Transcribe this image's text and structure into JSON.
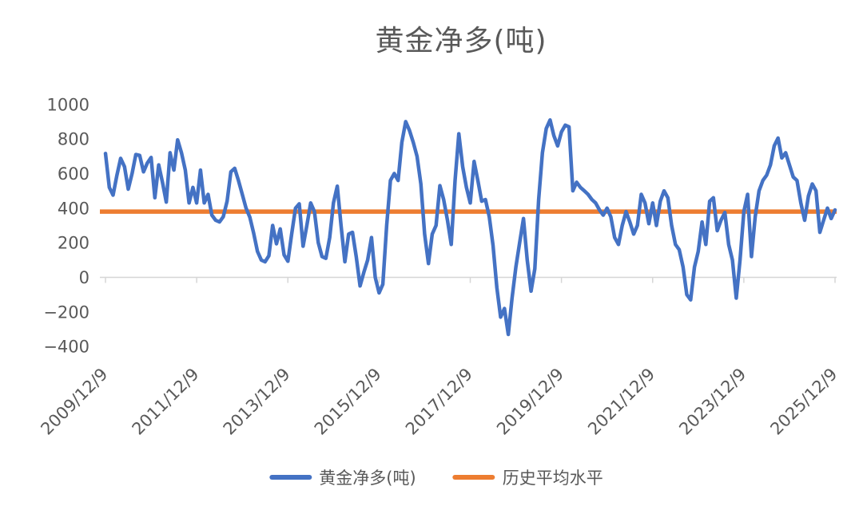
{
  "title": "黄金净多(吨)",
  "colors": {
    "series_blue": "#4472C4",
    "average_orange": "#ED7D31",
    "axis_line": "#D6D6D6",
    "text_gray": "#595959",
    "background": "#FFFFFF"
  },
  "legend": [
    {
      "label": "黄金净多(吨)",
      "color": "#4472C4"
    },
    {
      "label": "历史平均水平",
      "color": "#ED7D31"
    }
  ],
  "chart_data": {
    "type": "line",
    "title": "黄金净多(吨)",
    "xlabel": "",
    "ylabel": "",
    "ylim": [
      -400,
      1000
    ],
    "y_ticks": [
      1000,
      800,
      600,
      400,
      200,
      0,
      -200,
      -400
    ],
    "x_tick_labels": [
      "2009/12/9",
      "2011/12/9",
      "2013/12/9",
      "2015/12/9",
      "2017/12/9",
      "2019/12/9",
      "2021/12/9",
      "2023/12/9",
      "2025/12/9"
    ],
    "grid": "baseline-at-zero-only",
    "legend_position": "bottom",
    "series": [
      {
        "name": "黄金净多(吨)",
        "color": "#4472C4",
        "unit": "吨",
        "sampling": "monthly estimates read from plot, 2009/12 to 2025/12",
        "values": [
          716,
          520,
          475,
          590,
          688,
          640,
          510,
          600,
          710,
          705,
          610,
          660,
          693,
          460,
          650,
          550,
          435,
          720,
          620,
          795,
          720,
          620,
          430,
          520,
          430,
          620,
          430,
          480,
          360,
          330,
          320,
          350,
          440,
          610,
          630,
          560,
          480,
          400,
          347,
          254,
          150,
          100,
          90,
          125,
          300,
          194,
          280,
          130,
          93,
          250,
          400,
          425,
          180,
          300,
          430,
          380,
          200,
          120,
          110,
          230,
          430,
          527,
          300,
          90,
          250,
          260,
          120,
          -50,
          30,
          100,
          230,
          0,
          -90,
          -40,
          300,
          560,
          600,
          560,
          780,
          900,
          850,
          780,
          700,
          540,
          250,
          80,
          250,
          300,
          530,
          450,
          330,
          190,
          560,
          830,
          640,
          520,
          430,
          670,
          560,
          440,
          450,
          350,
          185,
          -60,
          -230,
          -180,
          -330,
          -120,
          60,
          200,
          340,
          100,
          -80,
          50,
          450,
          720,
          860,
          910,
          820,
          760,
          840,
          880,
          870,
          500,
          550,
          520,
          500,
          480,
          450,
          430,
          390,
          360,
          400,
          350,
          230,
          190,
          300,
          380,
          320,
          250,
          300,
          480,
          430,
          310,
          430,
          300,
          440,
          500,
          460,
          300,
          190,
          160,
          60,
          -100,
          -130,
          60,
          150,
          320,
          190,
          440,
          460,
          270,
          330,
          375,
          190,
          100,
          -120,
          100,
          380,
          480,
          120,
          350,
          500,
          560,
          590,
          650,
          760,
          805,
          690,
          720,
          650,
          580,
          560,
          430,
          330,
          470,
          540,
          500,
          260,
          330,
          400,
          340,
          390
        ]
      },
      {
        "name": "历史平均水平",
        "type": "constant-average-line",
        "color": "#ED7D31",
        "value": 380
      }
    ]
  }
}
